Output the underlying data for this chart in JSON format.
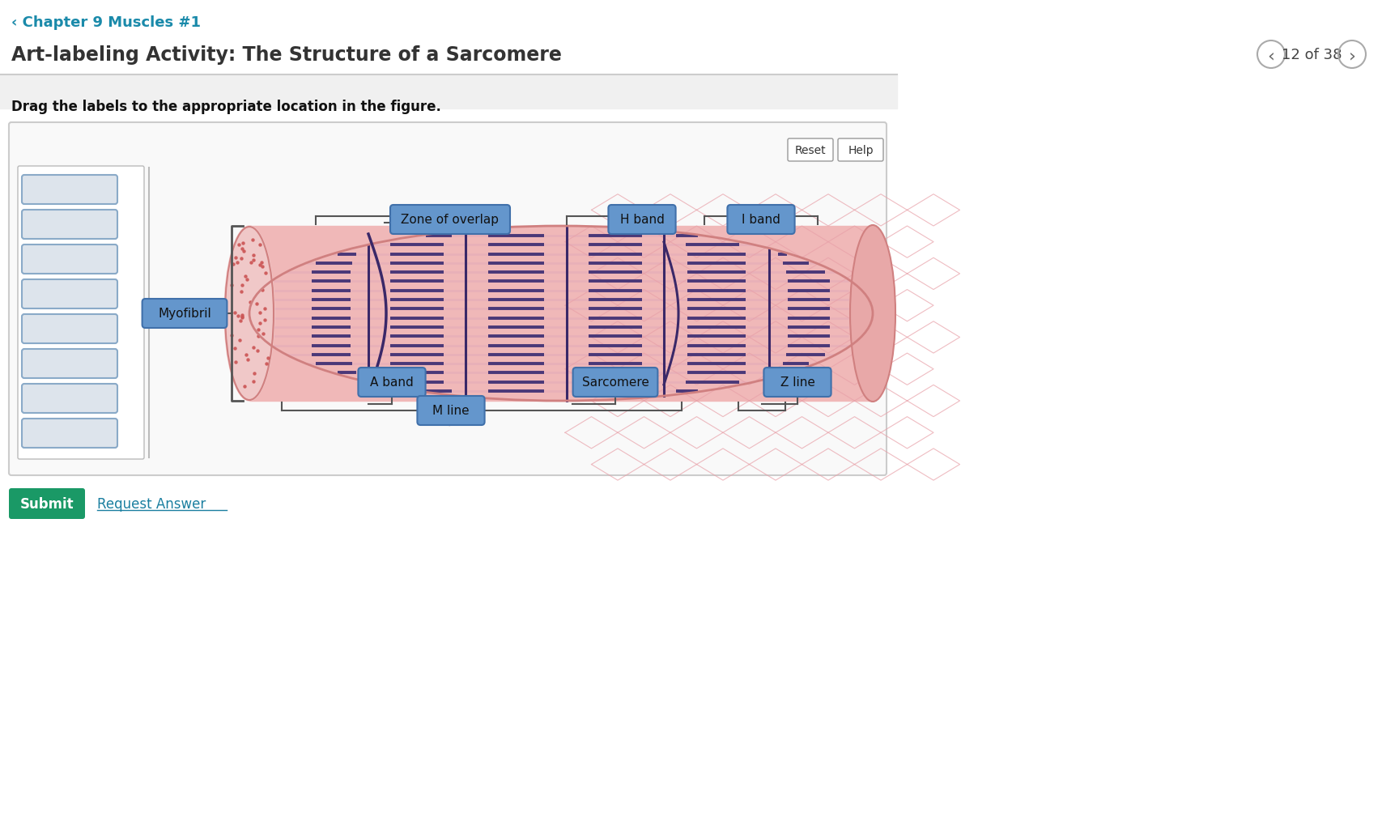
{
  "bg_color": "#ffffff",
  "page_bg": "#f0f0f0",
  "title_chapter": "‹ Chapter 9 Muscles #1",
  "title_chapter_color": "#1a8aaa",
  "title_main": "Art-labeling Activity: The Structure of a Sarcomere",
  "title_main_color": "#333333",
  "page_nav": "12 of 38",
  "instruction": "Drag the labels to the appropriate location in the figure.",
  "label_box_bg": "#6496cc",
  "label_box_edge": "#4070aa",
  "label_text_color": "#111111",
  "empty_box_color": "#dde4ec",
  "empty_box_border": "#8aaac8",
  "muscle_body_color": "#f0b8b8",
  "muscle_cap_color": "#f0c8c8",
  "muscle_cap_dot": "#cc5555",
  "muscle_stripe_dark": "#4a3878",
  "muscle_stripe_mid": "#b87ab0",
  "muscle_border_color": "#d08080",
  "separator_color": "#cccccc",
  "nav_circle_color": "#aaaaaa",
  "btn_edge": "#999999",
  "bracket_color": "#555555",
  "submit_bg": "#1a9966",
  "submit_text": "#ffffff",
  "request_color": "#1a7fa0",
  "frame_bg": "#f9f9f9",
  "frame_edge": "#cccccc",
  "inner_panel_edge": "#bbbbbb"
}
